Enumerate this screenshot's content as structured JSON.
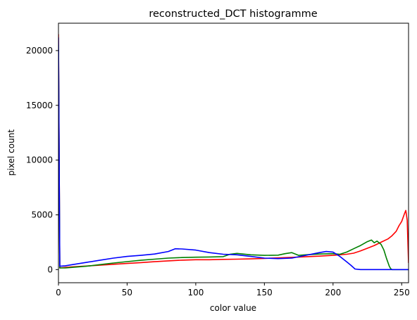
{
  "chart_data": {
    "type": "line",
    "title": "reconstructed_DCT histogramme",
    "xlabel": "color value",
    "ylabel": "pixel count",
    "xlim": [
      0,
      255
    ],
    "ylim": [
      -1200,
      22500
    ],
    "xticks": [
      0,
      50,
      100,
      150,
      200,
      250
    ],
    "yticks": [
      0,
      5000,
      10000,
      15000,
      20000
    ],
    "grid": false,
    "legend": "none",
    "series": [
      {
        "color": "#ff0000",
        "points": [
          [
            0,
            21500
          ],
          [
            1,
            150
          ],
          [
            5,
            200
          ],
          [
            10,
            250
          ],
          [
            20,
            320
          ],
          [
            30,
            400
          ],
          [
            40,
            480
          ],
          [
            50,
            560
          ],
          [
            60,
            640
          ],
          [
            70,
            720
          ],
          [
            80,
            800
          ],
          [
            90,
            860
          ],
          [
            100,
            900
          ],
          [
            110,
            900
          ],
          [
            120,
            930
          ],
          [
            130,
            950
          ],
          [
            140,
            980
          ],
          [
            150,
            1020
          ],
          [
            160,
            1070
          ],
          [
            170,
            1120
          ],
          [
            180,
            1170
          ],
          [
            190,
            1230
          ],
          [
            200,
            1300
          ],
          [
            210,
            1400
          ],
          [
            215,
            1500
          ],
          [
            220,
            1700
          ],
          [
            225,
            1950
          ],
          [
            230,
            2200
          ],
          [
            235,
            2500
          ],
          [
            240,
            2800
          ],
          [
            243,
            3100
          ],
          [
            246,
            3500
          ],
          [
            248,
            4000
          ],
          [
            250,
            4400
          ],
          [
            252,
            5100
          ],
          [
            253,
            5400
          ],
          [
            254,
            4500
          ],
          [
            255,
            600
          ]
        ]
      },
      {
        "color": "#008000",
        "points": [
          [
            0,
            20500
          ],
          [
            1,
            150
          ],
          [
            5,
            150
          ],
          [
            10,
            200
          ],
          [
            20,
            300
          ],
          [
            30,
            450
          ],
          [
            40,
            600
          ],
          [
            50,
            730
          ],
          [
            60,
            850
          ],
          [
            70,
            950
          ],
          [
            80,
            1050
          ],
          [
            90,
            1100
          ],
          [
            100,
            1130
          ],
          [
            110,
            1150
          ],
          [
            120,
            1180
          ],
          [
            125,
            1400
          ],
          [
            130,
            1480
          ],
          [
            140,
            1350
          ],
          [
            150,
            1300
          ],
          [
            160,
            1320
          ],
          [
            165,
            1450
          ],
          [
            170,
            1550
          ],
          [
            175,
            1300
          ],
          [
            180,
            1350
          ],
          [
            190,
            1420
          ],
          [
            200,
            1450
          ],
          [
            205,
            1400
          ],
          [
            210,
            1600
          ],
          [
            215,
            1900
          ],
          [
            220,
            2200
          ],
          [
            225,
            2550
          ],
          [
            228,
            2700
          ],
          [
            230,
            2450
          ],
          [
            232,
            2600
          ],
          [
            235,
            2300
          ],
          [
            237,
            1800
          ],
          [
            239,
            1000
          ],
          [
            241,
            300
          ],
          [
            242,
            80
          ],
          [
            243,
            0
          ],
          [
            255,
            0
          ]
        ]
      },
      {
        "color": "#0000ff",
        "points": [
          [
            0,
            21200
          ],
          [
            1,
            300
          ],
          [
            5,
            350
          ],
          [
            10,
            450
          ],
          [
            20,
            650
          ],
          [
            30,
            850
          ],
          [
            40,
            1050
          ],
          [
            50,
            1200
          ],
          [
            60,
            1300
          ],
          [
            70,
            1420
          ],
          [
            80,
            1650
          ],
          [
            85,
            1900
          ],
          [
            90,
            1880
          ],
          [
            100,
            1780
          ],
          [
            110,
            1550
          ],
          [
            120,
            1400
          ],
          [
            130,
            1350
          ],
          [
            140,
            1200
          ],
          [
            150,
            1050
          ],
          [
            160,
            1000
          ],
          [
            170,
            1050
          ],
          [
            180,
            1300
          ],
          [
            190,
            1550
          ],
          [
            195,
            1650
          ],
          [
            200,
            1600
          ],
          [
            205,
            1200
          ],
          [
            210,
            700
          ],
          [
            213,
            400
          ],
          [
            216,
            50
          ],
          [
            220,
            0
          ],
          [
            255,
            0
          ]
        ]
      }
    ]
  }
}
